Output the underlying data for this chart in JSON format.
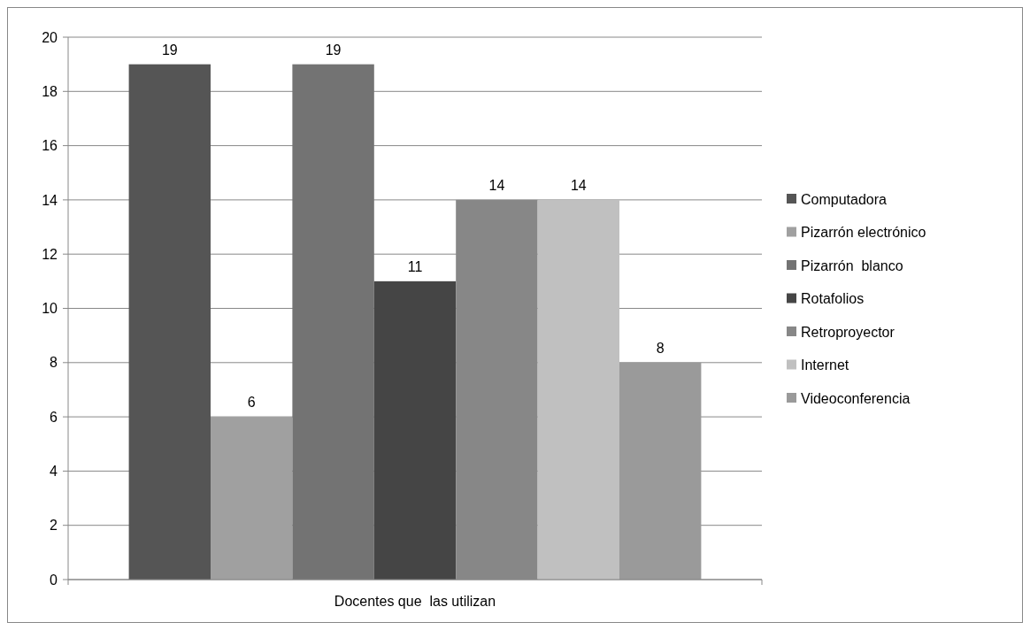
{
  "chart_data": {
    "type": "bar",
    "categories": [
      "Docentes que  las utilizan"
    ],
    "series": [
      {
        "name": "Computadora",
        "color": "#555555",
        "values": [
          19
        ]
      },
      {
        "name": "Pizarrón electrónico",
        "color": "#a0a0a0",
        "values": [
          6
        ]
      },
      {
        "name": "Pizarrón  blanco",
        "color": "#737373",
        "values": [
          19
        ]
      },
      {
        "name": "Rotafolios",
        "color": "#454545",
        "values": [
          11
        ]
      },
      {
        "name": "Retroproyector",
        "color": "#878787",
        "values": [
          14
        ]
      },
      {
        "name": "Internet",
        "color": "#c0c0c0",
        "values": [
          14
        ]
      },
      {
        "name": "Videoconferencia",
        "color": "#9a9a9a",
        "values": [
          8
        ]
      }
    ],
    "ylim": [
      0,
      20
    ],
    "yticks": [
      0,
      2,
      4,
      6,
      8,
      10,
      12,
      14,
      16,
      18,
      20
    ],
    "grid": "y",
    "legend": "right",
    "data_labels": true
  }
}
